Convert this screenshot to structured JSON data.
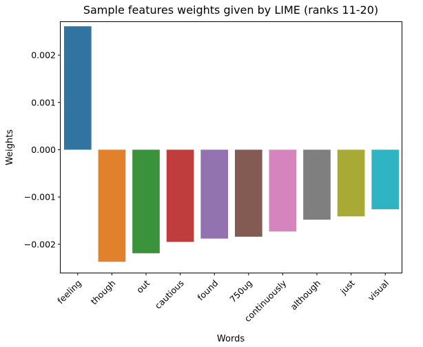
{
  "chart_data": {
    "type": "bar",
    "title": "Sample features weights given by LIME (ranks 11-20)",
    "xlabel": "Words",
    "ylabel": "Weights",
    "categories": [
      "feeling",
      "though",
      "out",
      "cautious",
      "found",
      "750ug",
      "continuously",
      "although",
      "just",
      "visual"
    ],
    "values": [
      0.00261,
      -0.00237,
      -0.00219,
      -0.00195,
      -0.00188,
      -0.00184,
      -0.00173,
      -0.00148,
      -0.00141,
      -0.00126
    ],
    "colors": [
      "#3274a1",
      "#e1812c",
      "#3a923a",
      "#c03d3e",
      "#9372b2",
      "#845b53",
      "#d684bd",
      "#7f7f7f",
      "#a9aa35",
      "#2eb4c3"
    ],
    "ylim": [
      -0.0026,
      0.0027
    ],
    "yticks": [
      -0.002,
      -0.001,
      0.0,
      0.001,
      0.002
    ],
    "ytick_labels": [
      "−0.002",
      "−0.001",
      "0.000",
      "0.001",
      "0.002"
    ],
    "grid": false,
    "legend": "none"
  }
}
